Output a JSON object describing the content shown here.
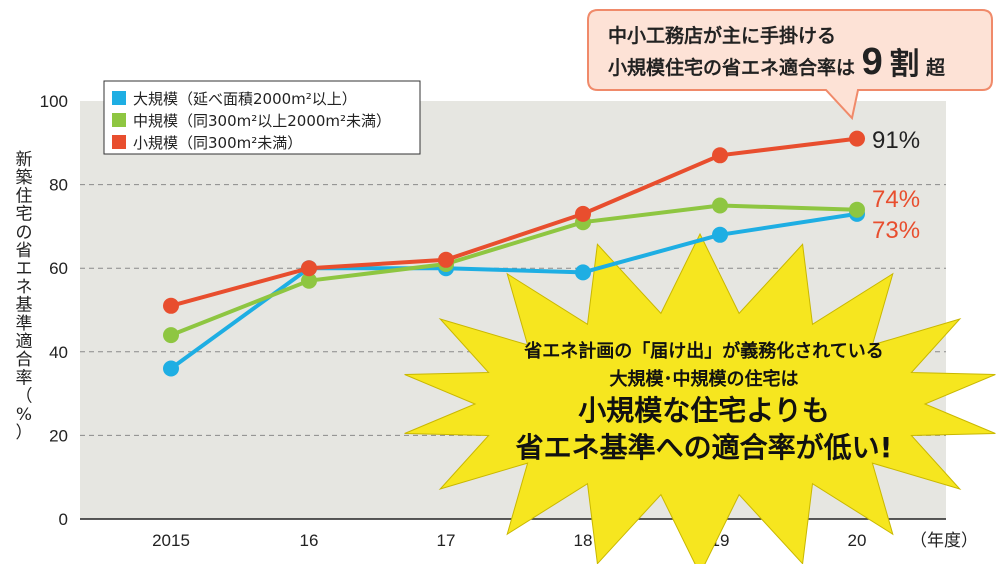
{
  "chart_data": {
    "type": "line",
    "x_labels": [
      "2015",
      "16",
      "17",
      "18",
      "19",
      "20"
    ],
    "x_unit": "（年度）",
    "ylabel": "新築住宅の省エネ基準適合率（%）",
    "ylim": [
      0,
      100
    ],
    "yticks": [
      0,
      20,
      40,
      60,
      80,
      100
    ],
    "grid": "horizontal dashed",
    "legend_position": "top-left",
    "series": [
      {
        "name": "大規模（延べ面積2000m²以上）",
        "color": "#1eaee3",
        "values": [
          36,
          60,
          60,
          59,
          68,
          73
        ]
      },
      {
        "name": "中規模（同300m²以上2000m²未満）",
        "color": "#8ec641",
        "values": [
          44,
          57,
          61,
          71,
          75,
          74
        ]
      },
      {
        "name": "小規模（同300m²未満）",
        "color": "#e84e2e",
        "values": [
          51,
          60,
          62,
          73,
          87,
          91
        ]
      }
    ],
    "end_labels": [
      {
        "text": "91%",
        "color": "#222222"
      },
      {
        "text": "74%",
        "color": "#e84e2e"
      },
      {
        "text": "73%",
        "color": "#e84e2e"
      }
    ]
  },
  "callout": {
    "line1": "中小工務店が主に手掛ける",
    "line2_prefix": "小規模住宅の省エネ適合率は",
    "line2_number": "9",
    "line2_big": "割",
    "line2_suffix": "超",
    "color": "#fde2d6",
    "border_color": "#f08a6a"
  },
  "burst": {
    "line1": "省エネ計画の「届け出」が義務化されている",
    "line2": "大規模･中規模の住宅は",
    "line3": "小規模な住宅よりも",
    "line4": "省エネ基準への適合率が低い!",
    "color": "#f6e61f"
  },
  "colors": {
    "plot_background": "#e6e6e1"
  }
}
